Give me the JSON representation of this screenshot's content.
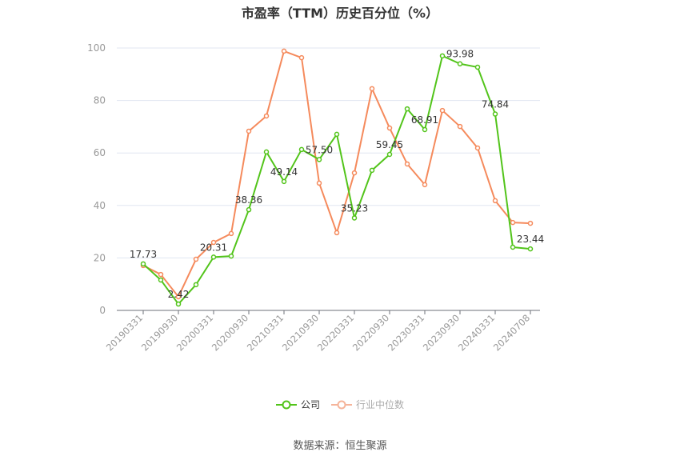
{
  "title": "市盈率（TTM）历史百分位（%）",
  "source": "数据来源：恒生聚源",
  "legend": [
    {
      "name": "公司",
      "color": "#52c41a",
      "active": true
    },
    {
      "name": "行业中位数",
      "color": "#f5b49a",
      "active": false
    }
  ],
  "colors": {
    "company": "#52c41a",
    "industry": "#f58a5c",
    "grid": "#e0e6f1",
    "axis": "#6e7079",
    "tick_label": "#999999"
  },
  "chart_data": {
    "type": "line",
    "title": "市盈率（TTM）历史百分位（%）",
    "xlabel": "",
    "ylabel": "",
    "ylim": [
      0,
      100
    ],
    "yticks": [
      0,
      20,
      40,
      60,
      80,
      100
    ],
    "grid": true,
    "legend_position": "bottom",
    "x_tick_labels": [
      "20190331",
      "20190930",
      "20200331",
      "20200930",
      "20210331",
      "20210930",
      "20220331",
      "20220930",
      "20230331",
      "20230930",
      "20240331",
      "20240708"
    ],
    "x": [
      "20190331",
      "20190630",
      "20190930",
      "20191231",
      "20200331",
      "20200630",
      "20200930",
      "20201231",
      "20210331",
      "20210630",
      "20210930",
      "20211231",
      "20220331",
      "20220630",
      "20220930",
      "20221231",
      "20230331",
      "20230630",
      "20230930",
      "20231231",
      "20240331",
      "20240630",
      "20240708"
    ],
    "series": [
      {
        "name": "公司",
        "values": [
          17.73,
          11.6,
          2.42,
          9.8,
          20.31,
          20.7,
          38.36,
          60.4,
          49.14,
          61.3,
          57.5,
          67.1,
          35.23,
          53.4,
          59.45,
          76.8,
          68.91,
          97.0,
          93.98,
          92.7,
          74.84,
          24.1,
          23.44
        ],
        "labels": {
          "0": "17.73",
          "2": "2.42",
          "4": "20.31",
          "6": "38.36",
          "8": "49.14",
          "10": "57.50",
          "12": "35.23",
          "14": "59.45",
          "16": "68.91",
          "18": "93.98",
          "20": "74.84",
          "22": "23.44"
        }
      },
      {
        "name": "行业中位数",
        "values": [
          17.1,
          13.7,
          5.2,
          19.5,
          25.9,
          29.3,
          68.3,
          74.1,
          98.8,
          96.3,
          48.5,
          29.6,
          52.4,
          84.5,
          69.5,
          55.8,
          47.9,
          76.2,
          70.1,
          61.9,
          41.8,
          33.5,
          33.2
        ]
      }
    ]
  }
}
